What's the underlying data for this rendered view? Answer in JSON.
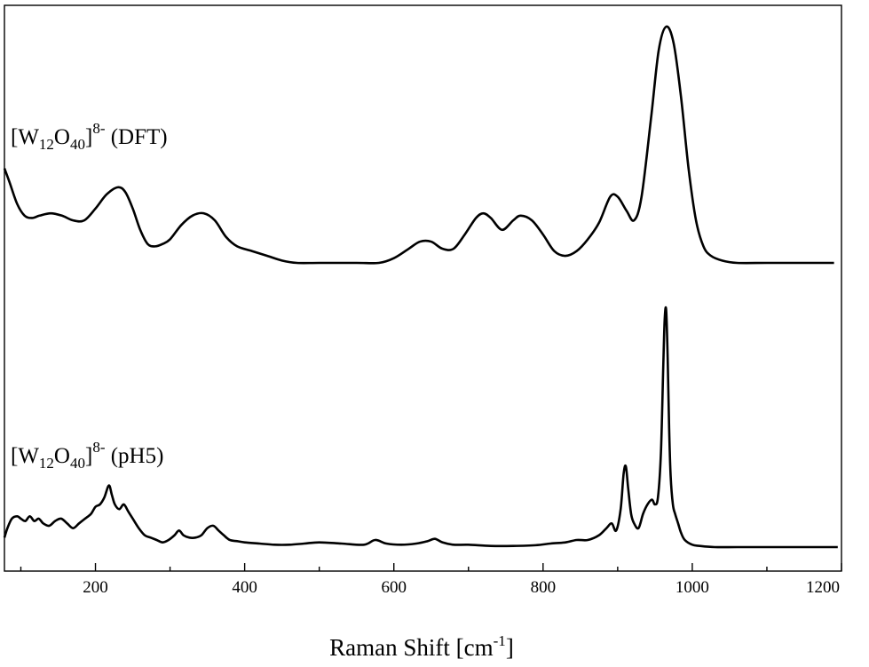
{
  "chart_data": {
    "type": "line",
    "xlabel": {
      "main": "Raman Shift [cm",
      "sup": "-1",
      "close": "]"
    },
    "ylabel": "",
    "xlim": [
      78,
      1200
    ],
    "y_ticks_shown": false,
    "xticks": [
      200,
      400,
      600,
      800,
      1000,
      1200
    ],
    "grid": false,
    "legend": "none",
    "colors": {
      "line": "#000000",
      "axes": "#000000",
      "background": "#ffffff"
    },
    "series": [
      {
        "name": "[W12O40]8- (DFT)",
        "label_parts": {
          "open": "[W",
          "sub1": "12",
          "mid": "O",
          "sub2": "40",
          "close": "]",
          "sup": "8-",
          "tail": " (DFT)"
        },
        "offset_rank": "top",
        "x": [
          78,
          85,
          95,
          105,
          115,
          125,
          140,
          155,
          170,
          185,
          200,
          215,
          230,
          240,
          250,
          260,
          270,
          280,
          290,
          300,
          315,
          330,
          345,
          360,
          375,
          390,
          410,
          430,
          450,
          470,
          500,
          550,
          580,
          600,
          620,
          635,
          650,
          665,
          680,
          695,
          710,
          720,
          730,
          745,
          760,
          770,
          785,
          800,
          815,
          830,
          845,
          860,
          875,
          890,
          900,
          912,
          922,
          932,
          945,
          955,
          965,
          975,
          985,
          995,
          1005,
          1015,
          1025,
          1040,
          1060,
          1100,
          1150,
          1190
        ],
        "y": [
          0.4,
          0.34,
          0.25,
          0.2,
          0.19,
          0.2,
          0.21,
          0.2,
          0.18,
          0.18,
          0.23,
          0.29,
          0.32,
          0.3,
          0.23,
          0.14,
          0.08,
          0.07,
          0.08,
          0.1,
          0.16,
          0.2,
          0.21,
          0.18,
          0.11,
          0.07,
          0.05,
          0.03,
          0.01,
          0.0,
          0.0,
          0.0,
          0.0,
          0.02,
          0.06,
          0.09,
          0.09,
          0.06,
          0.06,
          0.12,
          0.19,
          0.21,
          0.19,
          0.14,
          0.18,
          0.2,
          0.18,
          0.12,
          0.05,
          0.03,
          0.05,
          0.1,
          0.17,
          0.28,
          0.28,
          0.22,
          0.18,
          0.28,
          0.62,
          0.9,
          1.0,
          0.93,
          0.7,
          0.4,
          0.18,
          0.07,
          0.03,
          0.01,
          0.0,
          0.0,
          0.0,
          0.0
        ]
      },
      {
        "name": "[W12O40]8- (pH5)",
        "label_parts": {
          "open": "[W",
          "sub1": "12",
          "mid": "O",
          "sub2": "40",
          "close": "]",
          "sup": "8-",
          "tail": " (pH5)"
        },
        "offset_rank": "bottom",
        "x": [
          78,
          82,
          88,
          95,
          100,
          106,
          112,
          118,
          124,
          130,
          138,
          146,
          154,
          162,
          170,
          178,
          186,
          194,
          200,
          206,
          212,
          218,
          222,
          226,
          232,
          238,
          244,
          250,
          258,
          266,
          274,
          282,
          290,
          298,
          306,
          312,
          318,
          326,
          334,
          342,
          350,
          358,
          365,
          372,
          380,
          390,
          400,
          420,
          440,
          460,
          480,
          500,
          530,
          560,
          575,
          590,
          610,
          630,
          645,
          655,
          665,
          680,
          700,
          730,
          760,
          790,
          810,
          830,
          845,
          860,
          875,
          885,
          892,
          898,
          904,
          908,
          911,
          914,
          918,
          922,
          928,
          934,
          940,
          946,
          950,
          954,
          958,
          961,
          963,
          965,
          967,
          969,
          971,
          974,
          977,
          981,
          985,
          990,
          1000,
          1010,
          1030,
          1060,
          1100,
          1150,
          1195
        ],
        "y": [
          0.04,
          0.08,
          0.12,
          0.13,
          0.12,
          0.11,
          0.13,
          0.11,
          0.12,
          0.1,
          0.09,
          0.11,
          0.12,
          0.1,
          0.08,
          0.1,
          0.12,
          0.14,
          0.17,
          0.18,
          0.21,
          0.26,
          0.22,
          0.18,
          0.16,
          0.18,
          0.15,
          0.12,
          0.08,
          0.05,
          0.04,
          0.03,
          0.02,
          0.03,
          0.05,
          0.07,
          0.05,
          0.04,
          0.04,
          0.05,
          0.08,
          0.09,
          0.07,
          0.05,
          0.03,
          0.025,
          0.02,
          0.015,
          0.01,
          0.01,
          0.015,
          0.02,
          0.015,
          0.01,
          0.03,
          0.015,
          0.01,
          0.015,
          0.025,
          0.035,
          0.02,
          0.01,
          0.01,
          0.005,
          0.005,
          0.008,
          0.015,
          0.02,
          0.03,
          0.03,
          0.05,
          0.08,
          0.1,
          0.07,
          0.16,
          0.31,
          0.34,
          0.25,
          0.14,
          0.1,
          0.08,
          0.14,
          0.18,
          0.2,
          0.18,
          0.21,
          0.4,
          0.75,
          0.96,
          1.0,
          0.8,
          0.5,
          0.3,
          0.18,
          0.14,
          0.1,
          0.06,
          0.03,
          0.01,
          0.005,
          0.0,
          0.0,
          0.0,
          0.0,
          0.0
        ]
      }
    ]
  }
}
